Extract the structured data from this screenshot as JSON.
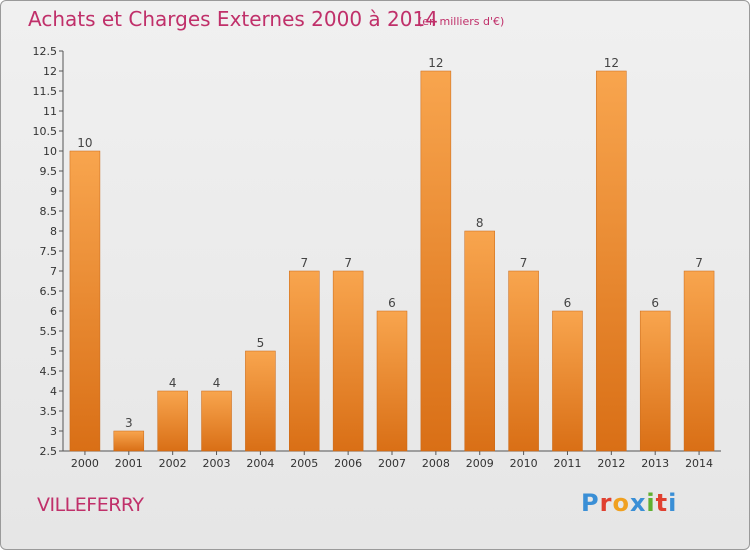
{
  "header": {
    "title": "Achats et Charges Externes 2000 à 2014",
    "unit": "(en milliers d'€)"
  },
  "footer": {
    "city": "VILLEFERRY",
    "logo": [
      "P",
      "r",
      "o",
      "x",
      "i",
      "t",
      "i"
    ]
  },
  "colors": {
    "title": "#c0306a",
    "bar_light": "#f8a54e",
    "bar_dark": "#d96f16",
    "logo": [
      "#3a8fd6",
      "#e04030",
      "#f0a020",
      "#3a8fd6",
      "#60b030",
      "#e04030",
      "#3a8fd6"
    ]
  },
  "chart_data": {
    "type": "bar",
    "categories": [
      "2000",
      "2001",
      "2002",
      "2003",
      "2004",
      "2005",
      "2006",
      "2007",
      "2008",
      "2009",
      "2010",
      "2011",
      "2012",
      "2013",
      "2014"
    ],
    "values": [
      10,
      3,
      4,
      4,
      5,
      7,
      7,
      6,
      12,
      8,
      7,
      6,
      12,
      6,
      7
    ],
    "title": "Achats et Charges Externes 2000 à 2014",
    "ylim": [
      2.5,
      12.5
    ],
    "yticks": [
      "2.5",
      "3",
      "3.5",
      "4",
      "4.5",
      "5",
      "5.5",
      "6",
      "6.5",
      "7",
      "7.5",
      "8",
      "8.5",
      "9",
      "9.5",
      "10",
      "10.5",
      "11",
      "11.5",
      "12",
      "12.5"
    ],
    "grid": false,
    "data_labels": true
  }
}
